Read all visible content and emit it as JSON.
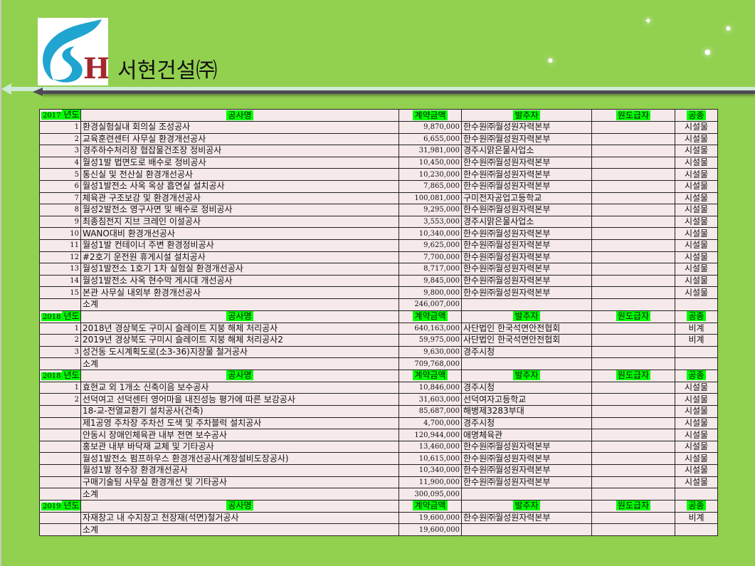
{
  "header": {
    "company_name": "서현건설㈜",
    "logo_letters": "SH",
    "colors": {
      "background": "#92d050",
      "highlight": "#00ff00",
      "logo_blue": "#1fa5cf",
      "logo_red": "#a3282e"
    }
  },
  "columns": {
    "name": "공사명",
    "amount": "계약금액",
    "client": "발주자",
    "prime": "원도급자",
    "type": "공종"
  },
  "sections": [
    {
      "year": "2017",
      "year_suffix": "년도",
      "rows": [
        {
          "no": "1",
          "name": "환경실험실내 회의실 조성공사",
          "amount": "9,870,000",
          "client": "한수원㈜월성원자력본부",
          "prime": "",
          "type": "시설물"
        },
        {
          "no": "2",
          "name": "교육훈련센터 사무실 환경개선공사",
          "amount": "6,655,000",
          "client": "한수원㈜월성원자력본부",
          "prime": "",
          "type": "시설물"
        },
        {
          "no": "3",
          "name": "경주하수처리장 협잡물건조장 정비공사",
          "amount": "31,981,000",
          "client": "경주시맑은물사업소",
          "prime": "",
          "type": "시설물"
        },
        {
          "no": "4",
          "name": "월성1발 법면도로 배수로 정비공사",
          "amount": "10,450,000",
          "client": "한수원㈜월성원자력본부",
          "prime": "",
          "type": "시설물"
        },
        {
          "no": "5",
          "name": "통신실 및 전산실 환경개선공사",
          "amount": "10,230,000",
          "client": "한수원㈜월성원자력본부",
          "prime": "",
          "type": "시설물"
        },
        {
          "no": "6",
          "name": "월성1발전소 사옥 옥상 흡연실 설치공사",
          "amount": "7,865,000",
          "client": "한수원㈜월성원자력본부",
          "prime": "",
          "type": "시설물"
        },
        {
          "no": "7",
          "name": "체육관 구조보강 및 환경개선공사",
          "amount": "100,081,000",
          "client": "구미전자공업고등학교",
          "prime": "",
          "type": "시설물"
        },
        {
          "no": "8",
          "name": "월성2발전소 영구사면 및 배수로 정비공사",
          "amount": "9,295,000",
          "client": "한수원㈜월성원자력본부",
          "prime": "",
          "type": "시설물"
        },
        {
          "no": "9",
          "name": "최종침전지 지브 크레인 이설공사",
          "amount": "3,553,000",
          "client": "경주시맑은물사업소",
          "prime": "",
          "type": "시설물"
        },
        {
          "no": "10",
          "name": "WANO대비 환경개선공사",
          "amount": "10,340,000",
          "client": "한수원㈜월성원자력본부",
          "prime": "",
          "type": "시설물"
        },
        {
          "no": "11",
          "name": "월성1발 컨테이너 주변 환경정비공사",
          "amount": "9,625,000",
          "client": "한수원㈜월성원자력본부",
          "prime": "",
          "type": "시설물"
        },
        {
          "no": "12",
          "name": "#2호기 운전원 휴게시설 설치공사",
          "amount": "7,700,000",
          "client": "한수원㈜월성원자력본부",
          "prime": "",
          "type": "시설물"
        },
        {
          "no": "13",
          "name": "월성1발전소 1호기 1차 실험실 환경개선공사",
          "amount": "8,717,000",
          "client": "한수원㈜월성원자력본부",
          "prime": "",
          "type": "시설물"
        },
        {
          "no": "14",
          "name": "월성1발전소 사옥 현수막 게시대 개선공사",
          "amount": "9,845,000",
          "client": "한수원㈜월성원자력본부",
          "prime": "",
          "type": "시설물"
        },
        {
          "no": "15",
          "name": "본관 사무실 내외부 환경개선공사",
          "amount": "9,800,000",
          "client": "한수원㈜월성원자력본부",
          "prime": "",
          "type": "시설물"
        }
      ],
      "subtotal_label": "소계",
      "subtotal": "246,007,000"
    },
    {
      "year": "2018",
      "year_suffix": "년도",
      "rows": [
        {
          "no": "1",
          "name": "2018년 경상북도 구미시 슬레이트 지붕 해체 처리공사",
          "amount": "640,163,000",
          "client": "사단법인 한국석면안전협회",
          "prime": "",
          "type": "비계"
        },
        {
          "no": "2",
          "name": "2019년 경상북도 구미시 슬레이트 지붕 해체 처리공사2",
          "amount": "59,975,000",
          "client": "사단법인 한국석면안전협회",
          "prime": "",
          "type": "비계"
        },
        {
          "no": "3",
          "name": "성건동 도시계획도로(소3-36)지장물 철거공사",
          "amount": "9,630,000",
          "client": "경주시청",
          "prime": "",
          "type": ""
        }
      ],
      "subtotal_label": "소계",
      "subtotal": "709,768,000"
    },
    {
      "year": "2018",
      "year_suffix": "년도",
      "rows": [
        {
          "no": "1",
          "name": "효현교 외 1개소 신축이음 보수공사",
          "amount": "10,846,000",
          "client": "경주시청",
          "prime": "",
          "type": "시설물"
        },
        {
          "no": "2",
          "name": "선덕여고 선덕센터 영어마을 내진성능 평가에 따른 보강공사",
          "amount": "31,603,000",
          "client": "선덕여자고등학교",
          "prime": "",
          "type": "시설물"
        },
        {
          "no": "",
          "name": "18-교-전열교환기 설치공사(건축)",
          "amount": "85,687,000",
          "client": "해병제3283부대",
          "prime": "",
          "type": "시설물"
        },
        {
          "no": "",
          "name": "제1공영 주차장 주차선 도색 및 주차블럭 설치공사",
          "amount": "4,700,000",
          "client": "경주시청",
          "prime": "",
          "type": "시설물"
        },
        {
          "no": "",
          "name": "안동시 장애인체육관 내부 전면 보수공사",
          "amount": "120,944,000",
          "client": "애명체육관",
          "prime": "",
          "type": "시설물"
        },
        {
          "no": "",
          "name": "홍보관 내부 바닥재 교체 및 기타공사",
          "amount": "13,460,000",
          "client": "한수원㈜월성원자력본부",
          "prime": "",
          "type": "시설물"
        },
        {
          "no": "",
          "name": "월성1발전소 펌프하우스 환경개선공사(계장설비도장공사)",
          "amount": "10,615,000",
          "client": "한수원㈜월성원자력본부",
          "prime": "",
          "type": "시설물"
        },
        {
          "no": "",
          "name": "월성1발 정수장 환경개선공사",
          "amount": "10,340,000",
          "client": "한수원㈜월성원자력본부",
          "prime": "",
          "type": "시설물"
        },
        {
          "no": "",
          "name": "구매기술팀 사무실 환경개선 및 기타공사",
          "amount": "11,900,000",
          "client": "한수원㈜월성원자력본부",
          "prime": "",
          "type": "시설물"
        }
      ],
      "subtotal_label": "소계",
      "subtotal": "300,095,000"
    },
    {
      "year": "2019",
      "year_suffix": "년도",
      "rows": [
        {
          "no": "",
          "name": "자재창고 내 수지창고 천장재(석면)철거공사",
          "amount": "19,600,000",
          "client": "한수원㈜월성원자력본부",
          "prime": "",
          "type": "비계"
        }
      ],
      "subtotal_label": "소계",
      "subtotal": "19,600,000"
    }
  ]
}
